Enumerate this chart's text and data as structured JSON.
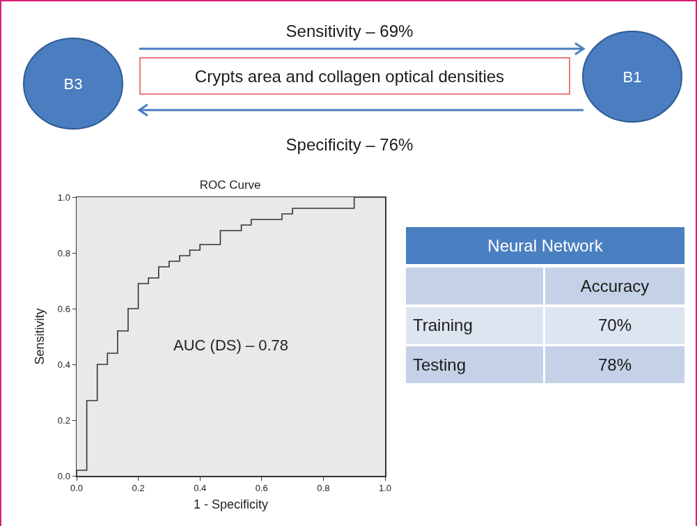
{
  "chart_data": [
    {
      "type": "other",
      "categories": [
        "B3",
        "B1"
      ],
      "annotations": [
        "Sensitivity – 69%",
        "Crypts area and collagen optical densities",
        "Specificity – 76%"
      ]
    },
    {
      "type": "step",
      "title": "ROC Curve",
      "xlabel": "1 - Specificity",
      "ylabel": "Sensitivity",
      "annotations": [
        "AUC (DS) – 0.78"
      ],
      "x": [
        0,
        0,
        0.033,
        0.067,
        0.1,
        0.133,
        0.167,
        0.2,
        0.233,
        0.266,
        0.3,
        0.334,
        0.367,
        0.4,
        0.466,
        0.534,
        0.566,
        0.666,
        0.7,
        0.9,
        1.0
      ],
      "series": [
        {
          "color": "#333333",
          "values": [
            0,
            0.02,
            0.27,
            0.4,
            0.44,
            0.52,
            0.6,
            0.69,
            0.71,
            0.75,
            0.77,
            0.79,
            0.81,
            0.83,
            0.88,
            0.9,
            0.92,
            0.94,
            0.96,
            1.0,
            1.0
          ]
        }
      ],
      "xlim": [
        0,
        1
      ],
      "ylim": [
        0,
        1
      ],
      "xticks": [
        {
          "value": 0,
          "label": "0.0"
        },
        0.2,
        0.4,
        0.6,
        0.8,
        {
          "value": 1,
          "label": "1.0"
        }
      ],
      "yticks": [
        {
          "value": 0,
          "label": "0.0"
        },
        0.2,
        0.4,
        0.6,
        0.8,
        {
          "value": 1,
          "label": "1.0"
        }
      ],
      "grid": false,
      "marker": "none",
      "line_style": "solid"
    },
    {
      "type": "other",
      "title": "Neural Network",
      "annotations": [
        "Accuracy",
        "Training",
        "70%",
        "Testing",
        "78%"
      ]
    }
  ]
}
